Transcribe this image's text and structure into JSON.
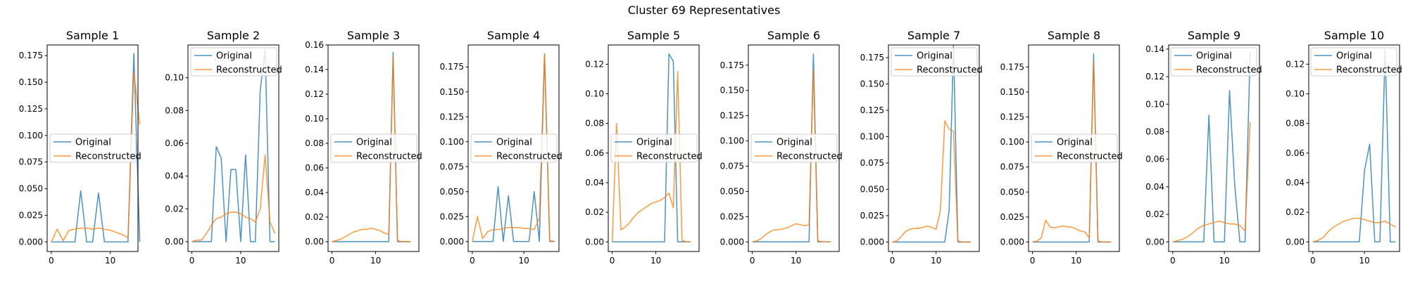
{
  "title": "Cluster 69 Representatives",
  "colors": {
    "original": "#1f77b4",
    "reconstructed": "#ff7f0e"
  },
  "chart_data": [
    {
      "type": "line",
      "title": "Sample 1",
      "xlim": [
        -0.7,
        14.7
      ],
      "ylim": [
        -0.009,
        0.185
      ],
      "xticks": [
        0,
        10
      ],
      "yticks": [
        0.0,
        0.025,
        0.05,
        0.075,
        0.1,
        0.125,
        0.15,
        0.175
      ],
      "ytick_labels": [
        "0.000",
        "0.025",
        "0.050",
        "0.075",
        "0.100",
        "0.125",
        "0.150",
        "0.175"
      ],
      "legend": "center-left",
      "series": [
        {
          "name": "Original",
          "values": [
            0,
            0,
            0,
            0,
            0,
            0.048,
            0,
            0,
            0.046,
            0,
            0,
            0,
            0,
            0,
            0.177,
            0
          ]
        },
        {
          "name": "Reconstructed",
          "values": [
            0,
            0.012,
            0.001,
            0.011,
            0.012,
            0.013,
            0.013,
            0.012,
            0.013,
            0.012,
            0.011,
            0.009,
            0.007,
            0.004,
            0.16,
            0.11
          ]
        }
      ]
    },
    {
      "type": "line",
      "title": "Sample 2",
      "xlim": [
        -0.8,
        17.8
      ],
      "ylim": [
        -0.006,
        0.12
      ],
      "xticks": [
        0,
        10
      ],
      "yticks": [
        0.0,
        0.02,
        0.04,
        0.06,
        0.08,
        0.1
      ],
      "ytick_labels": [
        "0.00",
        "0.02",
        "0.04",
        "0.06",
        "0.08",
        "0.10"
      ],
      "legend": "upper-left",
      "series": [
        {
          "name": "Original",
          "values": [
            0,
            0,
            0,
            0,
            0,
            0.058,
            0.051,
            0,
            0.044,
            0.044,
            0,
            0.053,
            0,
            0,
            0.092,
            0.117,
            0,
            0
          ]
        },
        {
          "name": "Reconstructed",
          "values": [
            0,
            0.001,
            0.001,
            0.005,
            0.01,
            0.014,
            0.015,
            0.017,
            0.018,
            0.018,
            0.017,
            0.015,
            0.014,
            0.012,
            0.02,
            0.053,
            0.012,
            0.005
          ]
        }
      ]
    },
    {
      "type": "line",
      "title": "Sample 3",
      "xlim": [
        -0.9,
        19.9
      ],
      "ylim": [
        -0.008,
        0.16
      ],
      "xticks": [
        0,
        10
      ],
      "yticks": [
        0.0,
        0.02,
        0.04,
        0.06,
        0.08,
        0.1,
        0.12,
        0.14,
        0.16
      ],
      "ytick_labels": [
        "0.00",
        "0.02",
        "0.04",
        "0.06",
        "0.08",
        "0.10",
        "0.12",
        "0.14",
        "0.16"
      ],
      "legend": "center-left",
      "series": [
        {
          "name": "Original",
          "values": [
            0,
            0,
            0,
            0,
            0,
            0,
            0,
            0,
            0,
            0,
            0,
            0,
            0,
            0,
            0.154,
            0,
            0,
            0,
            0
          ]
        },
        {
          "name": "Reconstructed",
          "values": [
            0,
            0.001,
            0.002,
            0.004,
            0.006,
            0.008,
            0.009,
            0.01,
            0.01,
            0.011,
            0.01,
            0.009,
            0.007,
            0.006,
            0.15,
            0.001,
            0,
            0,
            0
          ]
        }
      ]
    },
    {
      "type": "line",
      "title": "Sample 4",
      "xlim": [
        -0.8,
        16.8
      ],
      "ylim": [
        -0.01,
        0.197
      ],
      "xticks": [
        0,
        10
      ],
      "yticks": [
        0.0,
        0.025,
        0.05,
        0.075,
        0.1,
        0.125,
        0.15,
        0.175
      ],
      "ytick_labels": [
        "0.000",
        "0.025",
        "0.050",
        "0.075",
        "0.100",
        "0.125",
        "0.150",
        "0.175"
      ],
      "legend": "center-left",
      "series": [
        {
          "name": "Original",
          "values": [
            0,
            0,
            0,
            0,
            0,
            0.055,
            0,
            0.046,
            0,
            0,
            0,
            0,
            0.05,
            0,
            0.188,
            0,
            0
          ]
        },
        {
          "name": "Reconstructed",
          "values": [
            0,
            0.025,
            0.003,
            0.01,
            0.012,
            0.012,
            0.013,
            0.014,
            0.014,
            0.014,
            0.013,
            0.013,
            0.012,
            0.023,
            0.188,
            0.001,
            0
          ]
        }
      ]
    },
    {
      "type": "line",
      "title": "Sample 5",
      "xlim": [
        -0.9,
        19.9
      ],
      "ylim": [
        -0.0065,
        0.133
      ],
      "xticks": [
        0,
        10
      ],
      "yticks": [
        0.0,
        0.02,
        0.04,
        0.06,
        0.08,
        0.1,
        0.12
      ],
      "ytick_labels": [
        "0.00",
        "0.02",
        "0.04",
        "0.06",
        "0.08",
        "0.10",
        "0.12"
      ],
      "legend": "center-left",
      "series": [
        {
          "name": "Original",
          "values": [
            0,
            0,
            0,
            0,
            0,
            0,
            0,
            0,
            0,
            0,
            0,
            0,
            0,
            0.127,
            0.122,
            0,
            0,
            0,
            0
          ]
        },
        {
          "name": "Reconstructed",
          "values": [
            0,
            0.08,
            0.008,
            0.01,
            0.013,
            0.017,
            0.02,
            0.022,
            0.024,
            0.026,
            0.027,
            0.028,
            0.03,
            0.033,
            0.023,
            0.115,
            0.001,
            0,
            0
          ]
        }
      ]
    },
    {
      "type": "line",
      "title": "Sample 6",
      "xlim": [
        -0.9,
        19.9
      ],
      "ylim": [
        -0.0095,
        0.195
      ],
      "xticks": [
        0,
        10
      ],
      "yticks": [
        0.0,
        0.025,
        0.05,
        0.075,
        0.1,
        0.125,
        0.15,
        0.175
      ],
      "ytick_labels": [
        "0.000",
        "0.025",
        "0.050",
        "0.075",
        "0.100",
        "0.125",
        "0.150",
        "0.175"
      ],
      "legend": "center-left",
      "series": [
        {
          "name": "Original",
          "values": [
            0,
            0,
            0,
            0,
            0,
            0,
            0,
            0,
            0,
            0,
            0,
            0,
            0,
            0,
            0.186,
            0,
            0,
            0,
            0
          ]
        },
        {
          "name": "Reconstructed",
          "values": [
            0,
            0.001,
            0.003,
            0.007,
            0.01,
            0.012,
            0.012,
            0.013,
            0.014,
            0.016,
            0.018,
            0.017,
            0.016,
            0.017,
            0.17,
            0.001,
            0,
            0,
            0
          ]
        }
      ]
    },
    {
      "type": "line",
      "title": "Sample 7",
      "xlim": [
        -0.9,
        19.9
      ],
      "ylim": [
        -0.009,
        0.187
      ],
      "xticks": [
        0,
        10
      ],
      "yticks": [
        0.0,
        0.025,
        0.05,
        0.075,
        0.1,
        0.125,
        0.15,
        0.175
      ],
      "ytick_labels": [
        "0.000",
        "0.025",
        "0.050",
        "0.075",
        "0.100",
        "0.125",
        "0.150",
        "0.175"
      ],
      "legend": "upper-left",
      "series": [
        {
          "name": "Original",
          "values": [
            0,
            0,
            0,
            0,
            0,
            0,
            0,
            0,
            0,
            0,
            0,
            0,
            0,
            0.03,
            0.187,
            0,
            0,
            0,
            0
          ]
        },
        {
          "name": "Reconstructed",
          "values": [
            0,
            0.001,
            0.005,
            0.01,
            0.012,
            0.013,
            0.013,
            0.014,
            0.015,
            0.014,
            0.012,
            0.03,
            0.115,
            0.107,
            0.105,
            0.001,
            0,
            0,
            0
          ]
        }
      ]
    },
    {
      "type": "line",
      "title": "Sample 8",
      "xlim": [
        -0.9,
        19.9
      ],
      "ylim": [
        -0.0095,
        0.197
      ],
      "xticks": [
        0,
        10
      ],
      "yticks": [
        0.0,
        0.025,
        0.05,
        0.075,
        0.1,
        0.125,
        0.15,
        0.175
      ],
      "ytick_labels": [
        "0.000",
        "0.025",
        "0.050",
        "0.075",
        "0.100",
        "0.125",
        "0.150",
        "0.175"
      ],
      "legend": "center-left",
      "series": [
        {
          "name": "Original",
          "values": [
            0,
            0,
            0,
            0,
            0,
            0,
            0,
            0,
            0,
            0,
            0,
            0,
            0,
            0,
            0.188,
            0,
            0,
            0,
            0
          ]
        },
        {
          "name": "Reconstructed",
          "values": [
            0,
            0.001,
            0.004,
            0.022,
            0.015,
            0.014,
            0.015,
            0.016,
            0.015,
            0.015,
            0.013,
            0.011,
            0.01,
            0.004,
            0.18,
            0.001,
            0,
            0,
            0
          ]
        }
      ]
    },
    {
      "type": "line",
      "title": "Sample 9",
      "xlim": [
        -0.8,
        16.8
      ],
      "ylim": [
        -0.007,
        0.143
      ],
      "xticks": [
        0,
        10
      ],
      "yticks": [
        0.0,
        0.02,
        0.04,
        0.06,
        0.08,
        0.1,
        0.12,
        0.14
      ],
      "ytick_labels": [
        "0.00",
        "0.02",
        "0.04",
        "0.06",
        "0.08",
        "0.10",
        "0.12",
        "0.14"
      ],
      "legend": "upper-right",
      "series": [
        {
          "name": "Original",
          "values": [
            0,
            0,
            0,
            0,
            0,
            0,
            0,
            0.092,
            0,
            0,
            0,
            0.11,
            0.042,
            0,
            0,
            0.138
          ]
        },
        {
          "name": "Reconstructed",
          "values": [
            0,
            0.001,
            0.002,
            0.004,
            0.007,
            0.01,
            0.012,
            0.013,
            0.014,
            0.015,
            0.014,
            0.013,
            0.013,
            0.012,
            0.008,
            0.087
          ]
        }
      ]
    },
    {
      "type": "line",
      "title": "Sample 10",
      "xlim": [
        -0.8,
        16.8
      ],
      "ylim": [
        -0.0065,
        0.133
      ],
      "xticks": [
        0,
        10
      ],
      "yticks": [
        0.0,
        0.02,
        0.04,
        0.06,
        0.08,
        0.1,
        0.12
      ],
      "ytick_labels": [
        "0.00",
        "0.02",
        "0.04",
        "0.06",
        "0.08",
        "0.10",
        "0.12"
      ],
      "legend": "upper-right",
      "series": [
        {
          "name": "Original",
          "values": [
            0,
            0,
            0,
            0,
            0,
            0,
            0,
            0,
            0,
            0,
            0.048,
            0.066,
            0,
            0,
            0.13,
            0,
            0
          ]
        },
        {
          "name": "Reconstructed",
          "values": [
            0,
            0.001,
            0.003,
            0.007,
            0.01,
            0.012,
            0.014,
            0.015,
            0.016,
            0.016,
            0.015,
            0.014,
            0.013,
            0.013,
            0.014,
            0.012,
            0.01
          ]
        }
      ]
    }
  ]
}
